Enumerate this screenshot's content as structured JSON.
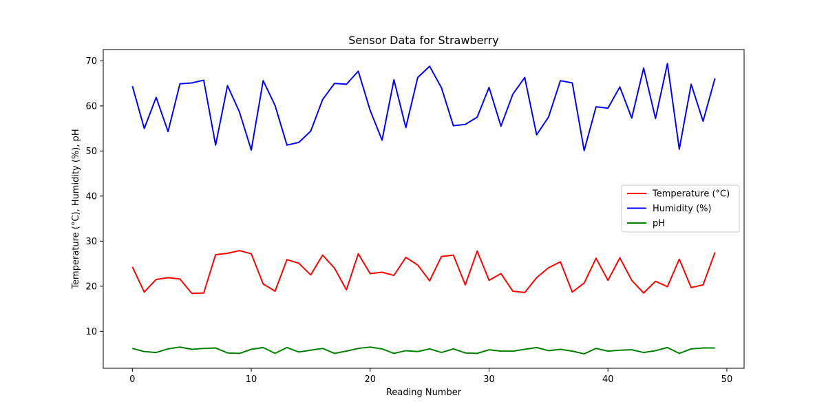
{
  "chart_data": {
    "type": "line",
    "title": "Sensor Data for Strawberry",
    "xlabel": "Reading Number",
    "ylabel": "Temperature (°C), Humidity (%), pH",
    "xlim": [
      -2.45,
      51.45
    ],
    "ylim": [
      1.8,
      72.5
    ],
    "xticks": [
      0,
      10,
      20,
      30,
      40,
      50
    ],
    "yticks": [
      10,
      20,
      30,
      40,
      50,
      60,
      70
    ],
    "grid": false,
    "legend_position": "center-right",
    "x": [
      0,
      1,
      2,
      3,
      4,
      5,
      6,
      7,
      8,
      9,
      10,
      11,
      12,
      13,
      14,
      15,
      16,
      17,
      18,
      19,
      20,
      21,
      22,
      23,
      24,
      25,
      26,
      27,
      28,
      29,
      30,
      31,
      32,
      33,
      34,
      35,
      36,
      37,
      38,
      39,
      40,
      41,
      42,
      43,
      44,
      45,
      46,
      47,
      48,
      49
    ],
    "series": [
      {
        "name": "Temperature (°C)",
        "color": "#ff0000",
        "values": [
          24.3,
          18.7,
          21.5,
          21.9,
          21.6,
          18.4,
          18.5,
          27.0,
          27.3,
          27.9,
          27.2,
          20.5,
          18.9,
          25.9,
          25.1,
          22.5,
          26.9,
          24.0,
          19.2,
          27.2,
          22.8,
          23.1,
          22.4,
          26.4,
          24.7,
          21.2,
          26.6,
          26.9,
          20.3,
          27.8,
          21.3,
          22.8,
          18.9,
          18.6,
          21.9,
          24.1,
          25.4,
          18.7,
          20.7,
          26.2,
          21.3,
          26.3,
          21.3,
          18.5,
          21.1,
          19.9,
          26.0,
          19.7,
          20.3,
          27.5
        ]
      },
      {
        "name": "Humidity (%)",
        "color": "#0000ff",
        "values": [
          64.4,
          55.0,
          61.9,
          54.3,
          64.9,
          65.1,
          65.7,
          51.3,
          64.5,
          58.7,
          50.2,
          65.6,
          60.1,
          51.3,
          51.9,
          54.4,
          61.4,
          65.0,
          64.8,
          67.7,
          59.0,
          52.4,
          65.8,
          55.2,
          66.3,
          68.8,
          64.0,
          55.6,
          55.9,
          57.5,
          64.1,
          55.5,
          62.6,
          66.3,
          53.6,
          57.5,
          65.6,
          65.1,
          50.1,
          59.8,
          59.5,
          64.2,
          57.3,
          68.4,
          57.2,
          69.4,
          50.4,
          64.8,
          56.6,
          66.1
        ]
      },
      {
        "name": "pH",
        "color": "#008000",
        "values": [
          6.2,
          5.5,
          5.3,
          6.1,
          6.5,
          6.0,
          6.2,
          6.3,
          5.2,
          5.1,
          6.0,
          6.4,
          5.1,
          6.4,
          5.4,
          5.8,
          6.2,
          5.1,
          5.6,
          6.2,
          6.5,
          6.1,
          5.1,
          5.7,
          5.5,
          6.1,
          5.3,
          6.1,
          5.2,
          5.1,
          5.9,
          5.6,
          5.6,
          6.0,
          6.4,
          5.7,
          6.0,
          5.6,
          5.0,
          6.2,
          5.6,
          5.8,
          5.9,
          5.3,
          5.7,
          6.4,
          5.1,
          6.1,
          6.3,
          6.3
        ]
      }
    ]
  }
}
